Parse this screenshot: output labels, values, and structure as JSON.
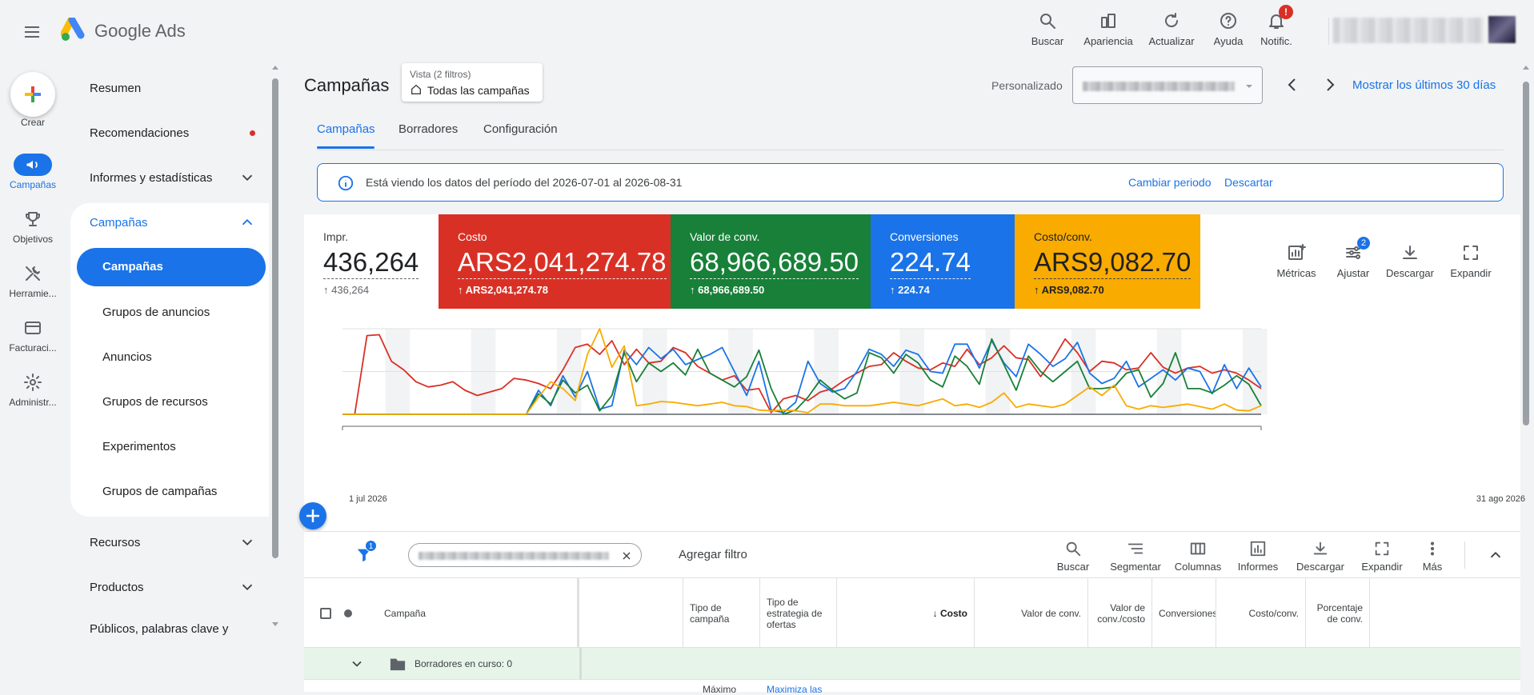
{
  "app": {
    "name": "Google Ads"
  },
  "topbar": {
    "tools": [
      {
        "id": "search",
        "label": "Buscar",
        "icon": "search-icon"
      },
      {
        "id": "appearance",
        "label": "Apariencia",
        "icon": "appearance-icon"
      },
      {
        "id": "refresh",
        "label": "Actualizar",
        "icon": "refresh-icon"
      },
      {
        "id": "help",
        "label": "Ayuda",
        "icon": "help-icon"
      },
      {
        "id": "notifications",
        "label": "Notific.",
        "icon": "bell-icon",
        "badge": "!"
      }
    ]
  },
  "rail": {
    "create_label": "Crear",
    "items": [
      {
        "label": "Campañas",
        "icon": "megaphone-icon",
        "active": true
      },
      {
        "label": "Objetivos",
        "icon": "trophy-icon"
      },
      {
        "label": "Herramie...",
        "icon": "tools-icon"
      },
      {
        "label": "Facturaci...",
        "icon": "card-icon"
      },
      {
        "label": "Administr...",
        "icon": "gear-icon"
      }
    ]
  },
  "nav": {
    "resumen": "Resumen",
    "recomendaciones": "Recomendaciones",
    "informes": "Informes y estadísticas",
    "campanas_group": "Campañas",
    "sub": [
      "Campañas",
      "Grupos de anuncios",
      "Anuncios",
      "Grupos de recursos",
      "Experimentos",
      "Grupos de campañas"
    ],
    "recursos": "Recursos",
    "productos": "Productos",
    "publicos": "Públicos, palabras clave y"
  },
  "header": {
    "title": "Campañas",
    "view_label": "Vista (2 filtros)",
    "view_value": "Todas las campañas",
    "date_mode": "Personalizado",
    "show_last": "Mostrar los últimos 30 días"
  },
  "tabs": [
    "Campañas",
    "Borradores",
    "Configuración"
  ],
  "info": {
    "text": "Está viendo los datos del período del 2026-07-01 al 2026-08-31",
    "change": "Cambiar periodo",
    "dismiss": "Descartar"
  },
  "metrics": [
    {
      "label": "Impr.",
      "value": "436,264",
      "sub": "436,264",
      "color": "#ffffff"
    },
    {
      "label": "Costo",
      "value": "ARS2,041,274.78",
      "sub": "ARS2,041,274.78",
      "color": "#d93025"
    },
    {
      "label": "Valor de conv.",
      "value": "68,966,689.50",
      "sub": "68,966,689.50",
      "color": "#188038"
    },
    {
      "label": "Conversiones",
      "value": "224.74",
      "sub": "224.74",
      "color": "#1a73e8"
    },
    {
      "label": "Costo/conv.",
      "value": "ARS9,082.70",
      "sub": "ARS9,082.70",
      "color": "#f9ab00"
    }
  ],
  "card_tools": [
    {
      "label": "Métricas",
      "icon": "metrics-icon"
    },
    {
      "label": "Ajustar",
      "icon": "tune-icon",
      "badge": "2"
    },
    {
      "label": "Descargar",
      "icon": "download-icon"
    },
    {
      "label": "Expandir",
      "icon": "expand-icon"
    }
  ],
  "chart_data": {
    "type": "line",
    "x_start": "1 jul 2026",
    "x_end": "31 ago 2026",
    "grid": true,
    "series": [
      {
        "color": "#d93025",
        "values": [
          0,
          0,
          92,
          93,
          62,
          52,
          38,
          32,
          34,
          38,
          28,
          22,
          26,
          30,
          42,
          40,
          36,
          30,
          52,
          78,
          82,
          70,
          86,
          58,
          76,
          60,
          62,
          78,
          72,
          56,
          48,
          40,
          45,
          28,
          30,
          2,
          18,
          22,
          16,
          26,
          30,
          40,
          48,
          56,
          58,
          72,
          62,
          54,
          52,
          60,
          56,
          76,
          58,
          66,
          80,
          66,
          64,
          44,
          64,
          88,
          72,
          50,
          62,
          60,
          52,
          54,
          72,
          55,
          48,
          54,
          56,
          48,
          52,
          48,
          40,
          30
        ]
      },
      {
        "color": "#1a73e8",
        "values": [
          0,
          0,
          0,
          0,
          0,
          0,
          0,
          0,
          0,
          0,
          0,
          0,
          0,
          0,
          0,
          0,
          28,
          10,
          45,
          20,
          50,
          6,
          10,
          75,
          58,
          78,
          65,
          76,
          58,
          64,
          70,
          78,
          50,
          22,
          62,
          5,
          2,
          14,
          62,
          36,
          26,
          30,
          50,
          76,
          70,
          56,
          75,
          70,
          50,
          48,
          82,
          82,
          54,
          86,
          60,
          44,
          82,
          70,
          56,
          65,
          84,
          48,
          36,
          42,
          62,
          32,
          42,
          52,
          40,
          54,
          50,
          24,
          58,
          30,
          54,
          32
        ]
      },
      {
        "color": "#188038",
        "values": [
          0,
          0,
          0,
          0,
          0,
          0,
          0,
          0,
          0,
          0,
          0,
          0,
          0,
          0,
          0,
          0,
          24,
          12,
          40,
          25,
          34,
          4,
          22,
          72,
          38,
          60,
          50,
          60,
          46,
          76,
          48,
          40,
          32,
          44,
          75,
          30,
          0,
          5,
          20,
          40,
          28,
          18,
          25,
          72,
          66,
          48,
          70,
          60,
          40,
          32,
          68,
          56,
          35,
          88,
          58,
          28,
          68,
          50,
          38,
          50,
          62,
          30,
          30,
          32,
          48,
          52,
          20,
          36,
          72,
          30,
          30,
          25,
          34,
          45,
          35,
          10
        ]
      },
      {
        "color": "#f9ab00",
        "values": [
          0,
          0,
          0,
          0,
          0,
          0,
          0,
          0,
          0,
          0,
          0,
          0,
          0,
          0,
          0,
          0,
          20,
          38,
          30,
          16,
          70,
          100,
          55,
          80,
          10,
          12,
          15,
          14,
          12,
          10,
          12,
          14,
          10,
          9,
          5,
          4,
          5,
          4,
          2,
          12,
          12,
          10,
          10,
          10,
          12,
          14,
          12,
          10,
          14,
          18,
          10,
          12,
          8,
          14,
          25,
          8,
          12,
          10,
          8,
          12,
          22,
          32,
          22,
          34,
          10,
          6,
          10,
          8,
          10,
          12,
          9,
          6,
          12,
          5,
          4,
          10
        ]
      }
    ]
  },
  "table_toolbar": {
    "filter_badge": "1",
    "add_filter": "Agregar filtro",
    "tools": [
      {
        "label": "Buscar",
        "icon": "search-icon"
      },
      {
        "label": "Segmentar",
        "icon": "segment-icon"
      },
      {
        "label": "Columnas",
        "icon": "columns-icon"
      },
      {
        "label": "Informes",
        "icon": "reports-icon"
      },
      {
        "label": "Descargar",
        "icon": "download-icon"
      },
      {
        "label": "Expandir",
        "icon": "expand-icon"
      },
      {
        "label": "Más",
        "icon": "more-icon"
      }
    ]
  },
  "table": {
    "headers": {
      "campaign": "Campaña",
      "type": "Tipo de campaña",
      "bid": "Tipo de estrategia de ofertas",
      "cost": "Costo",
      "conv_value": "Valor de conv.",
      "value_cost": "Valor de conv./costo",
      "conversions": "Conversiones",
      "cost_conv": "Costo/conv.",
      "conv_rate": "Porcentaje de conv."
    },
    "draft_row": "Borradores en curso: 0",
    "partial_row": {
      "type": "Máximo",
      "bid": "Maximiza las"
    }
  }
}
